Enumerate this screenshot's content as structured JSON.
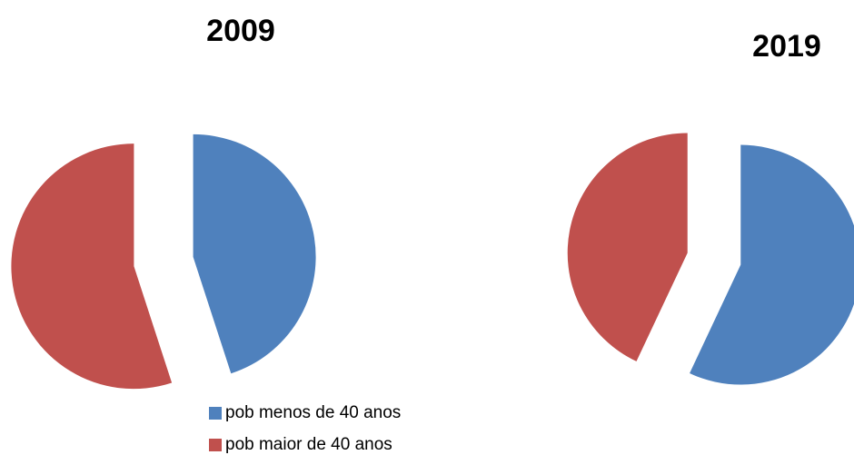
{
  "chart_data": [
    {
      "type": "pie",
      "title": "2009",
      "values": [
        45,
        55
      ]
    },
    {
      "type": "pie",
      "title": "2019",
      "values": [
        57,
        43
      ]
    }
  ],
  "legend": {
    "series": [
      {
        "name": "pob menos de 40 anos",
        "color": "#4f81bd"
      },
      {
        "name": "pob maior de 40 anos",
        "color": "#c0504d"
      }
    ]
  }
}
